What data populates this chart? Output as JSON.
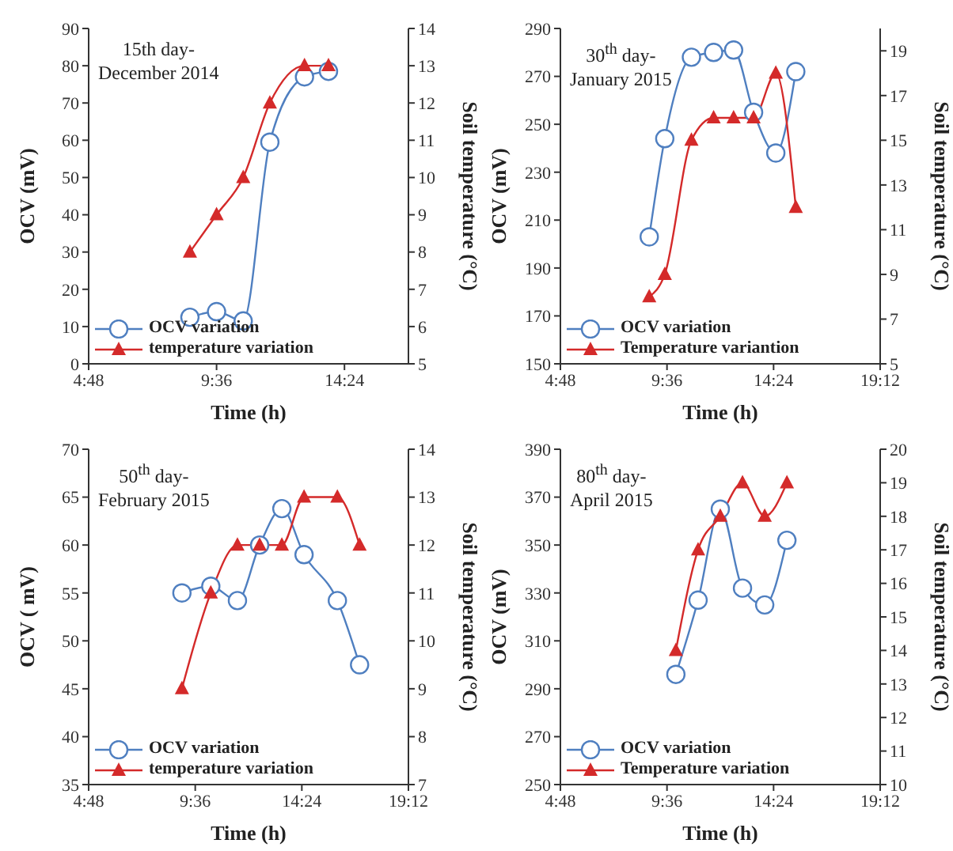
{
  "chart_data": [
    {
      "type": "line",
      "annotations": [
        "15th day-\nDecember 2014"
      ],
      "xlabel": "Time (h)",
      "ylabel": "OCV (mV)",
      "y2label": "Soil temperature (°C)",
      "x": [
        8.6,
        9.6,
        10.6,
        11.6,
        12.9,
        13.8
      ],
      "series": [
        {
          "name": "OCV variation",
          "color": "#4f7fc0",
          "marker": "circle",
          "values": [
            12.5,
            14,
            11.5,
            59.5,
            77,
            78.5
          ]
        },
        {
          "name": "temperature variation",
          "color": "#d42a2a",
          "marker": "triangle",
          "axis": "y2",
          "values": [
            8,
            9,
            10,
            12,
            13,
            13
          ]
        }
      ],
      "xlim": [
        4.8,
        16.8
      ],
      "xticks": [
        {
          "value": 4.8,
          "label": "4:48"
        },
        {
          "value": 9.6,
          "label": "9:36"
        },
        {
          "value": 14.4,
          "label": "14:24"
        }
      ],
      "ylim": [
        0,
        90
      ],
      "yticks": [
        0,
        10,
        20,
        30,
        40,
        50,
        60,
        70,
        80,
        90
      ],
      "y2lim": [
        5,
        14
      ],
      "y2ticks": [
        5,
        6,
        7,
        8,
        9,
        10,
        11,
        12,
        13,
        14
      ],
      "legend": "bottom left",
      "line_style": "solid"
    },
    {
      "type": "line",
      "annotations": [
        "30$^{th}$ day-\nJanuary 2015"
      ],
      "xlabel": "Time (h)",
      "ylabel": "OCV (mV)",
      "y2label": "Soil temperature (°C)",
      "x": [
        8.8,
        9.5,
        10.7,
        11.7,
        12.6,
        13.5,
        14.5,
        15.4
      ],
      "series": [
        {
          "name": "OCV variation",
          "color": "#4f7fc0",
          "marker": "circle",
          "values": [
            203,
            244,
            278,
            280,
            281,
            255,
            238,
            272
          ]
        },
        {
          "name": "Temperature variantion",
          "color": "#d42a2a",
          "marker": "triangle",
          "axis": "y2",
          "values": [
            8,
            9,
            15,
            16,
            16,
            16,
            18,
            12
          ]
        }
      ],
      "xlim": [
        4.8,
        19.2
      ],
      "xticks": [
        {
          "value": 4.8,
          "label": "4:48"
        },
        {
          "value": 9.6,
          "label": "9:36"
        },
        {
          "value": 14.4,
          "label": "14:24"
        },
        {
          "value": 19.2,
          "label": "19:12"
        }
      ],
      "ylim": [
        150,
        290
      ],
      "yticks": [
        150,
        170,
        190,
        210,
        230,
        250,
        270,
        290
      ],
      "y2lim": [
        5,
        20
      ],
      "y2ticks": [
        5,
        7,
        9,
        11,
        13,
        15,
        17,
        19
      ],
      "legend": "bottom left",
      "line_style": "solid"
    },
    {
      "type": "line",
      "annotations": [
        "50$^{th}$ day-\nFebruary 2015"
      ],
      "xlabel": "Time (h)",
      "ylabel": "OCV ( mV)",
      "y2label": "Soil temperature (°C)",
      "x": [
        9,
        10.3,
        11.5,
        12.5,
        13.5,
        14.5,
        16,
        17
      ],
      "series": [
        {
          "name": "OCV variation",
          "color": "#4f7fc0",
          "marker": "circle",
          "values": [
            55,
            55.7,
            54.2,
            60,
            63.8,
            59,
            54.2,
            47.5
          ]
        },
        {
          "name": "temperature variation",
          "color": "#d42a2a",
          "marker": "triangle",
          "axis": "y2",
          "values": [
            9,
            11,
            12,
            12,
            12,
            13,
            13,
            12
          ]
        }
      ],
      "xlim": [
        4.8,
        19.2
      ],
      "xticks": [
        {
          "value": 4.8,
          "label": "4:48"
        },
        {
          "value": 9.6,
          "label": "9:36"
        },
        {
          "value": 14.4,
          "label": "14:24"
        },
        {
          "value": 19.2,
          "label": "19:12"
        }
      ],
      "ylim": [
        35,
        70
      ],
      "yticks": [
        35,
        40,
        45,
        50,
        55,
        60,
        65,
        70
      ],
      "y2lim": [
        7,
        14
      ],
      "y2ticks": [
        7,
        8,
        9,
        10,
        11,
        12,
        13,
        14
      ],
      "legend": "bottom left",
      "line_style": "solid"
    },
    {
      "type": "line",
      "annotations": [
        "80$^{th}$ day-\nApril 2015"
      ],
      "xlabel": "Time (h)",
      "ylabel": "OCV (mV)",
      "y2label": "Soil temperature (°C)",
      "x": [
        10,
        11,
        12,
        13,
        14,
        15
      ],
      "series": [
        {
          "name": "OCV variation",
          "color": "#4f7fc0",
          "marker": "circle",
          "values": [
            296,
            327,
            365,
            332,
            325,
            352
          ]
        },
        {
          "name": "Temperature variation",
          "color": "#d42a2a",
          "marker": "triangle",
          "axis": "y2",
          "values": [
            14,
            17,
            18,
            19,
            18,
            19
          ]
        }
      ],
      "xlim": [
        4.8,
        19.2
      ],
      "xticks": [
        {
          "value": 4.8,
          "label": "4:48"
        },
        {
          "value": 9.6,
          "label": "9:36"
        },
        {
          "value": 14.4,
          "label": "14:24"
        },
        {
          "value": 19.2,
          "label": "19:12"
        }
      ],
      "ylim": [
        250,
        390
      ],
      "yticks": [
        250,
        270,
        290,
        310,
        330,
        350,
        370,
        390
      ],
      "y2lim": [
        10,
        20
      ],
      "y2ticks": [
        10,
        11,
        12,
        13,
        14,
        15,
        16,
        17,
        18,
        19,
        20
      ],
      "legend": "bottom left",
      "line_style": "solid"
    }
  ]
}
